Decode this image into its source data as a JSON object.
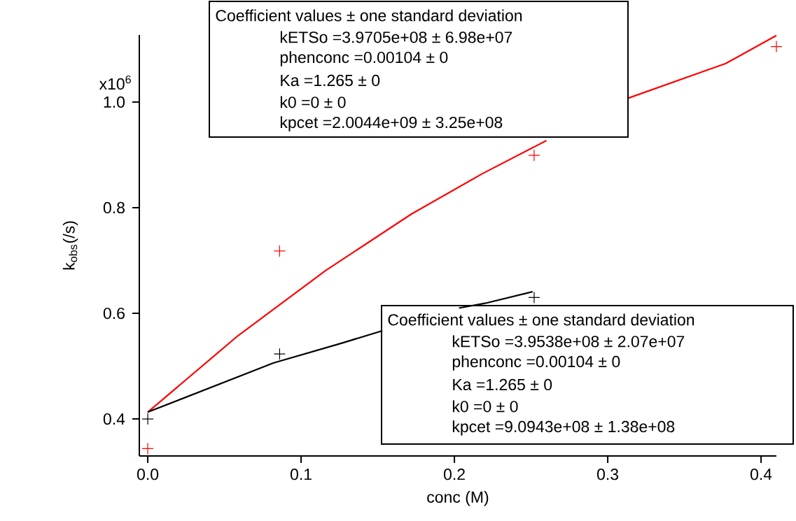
{
  "chart_data": {
    "type": "scatter",
    "xlabel": "conc (M)",
    "ylabel": "k$_{obs}$(/s)",
    "xlim": [
      -0.0055,
      0.41
    ],
    "ylim": [
      0.33,
      1.127
    ],
    "xticks": [
      {
        "value": 0,
        "label": "0.0"
      },
      0.1,
      0.2,
      0.3,
      0.4
    ],
    "yticks": [
      0.4,
      0.6,
      0.8,
      {
        "value": 1.0,
        "label": "1.0"
      }
    ],
    "marker": "cross",
    "grid": false,
    "series": [
      {
        "color": "#ff0000",
        "x": [
          0,
          0.086,
          0.252,
          0.41
        ],
        "values": [
          0.344,
          0.718,
          0.899,
          1.105
        ]
      },
      {
        "color": "#000000",
        "x": [
          0,
          0.086,
          0.252
        ],
        "values": [
          0.4,
          0.523,
          0.63
        ]
      },
      {
        "type": "line",
        "marker": "none",
        "color": "#ff0000",
        "x": [
          0,
          0.059,
          0.116,
          0.172,
          0.218,
          0.26,
          0.285,
          0.313,
          0.377,
          0.41
        ],
        "values": [
          0.413,
          0.558,
          0.681,
          0.788,
          0.864,
          0.927,
          null,
          1.007,
          1.073,
          1.126
        ]
      },
      {
        "type": "line",
        "marker": "none",
        "color": "#000000",
        "x": [
          0,
          0.082,
          0.127,
          0.153,
          0.18,
          0.203,
          0.22,
          0.251
        ],
        "values": [
          0.413,
          0.506,
          0.544,
          0.567,
          null,
          0.61,
          0.619,
          0.641
        ]
      }
    ],
    "annotations": [
      "x10$^{6}$",
      "Coefficient values ± one standard deviation",
      "kETSo =3.9705e+08 ± 6.98e+07",
      "phenconc =0.00104 ± 0",
      "Ka =1.265 ± 0",
      "k0 =0 ± 0",
      "kpcet =2.0044e+09 ± 3.25e+08",
      "Coefficient values ± one standard deviation",
      "kETSo =3.9538e+08 ± 2.07e+07",
      "phenconc =0.00104 ± 0",
      "Ka =1.265 ± 0",
      "k0 =0 ± 0",
      "kpcet =9.0943e+08 ± 1.38e+08"
    ]
  }
}
